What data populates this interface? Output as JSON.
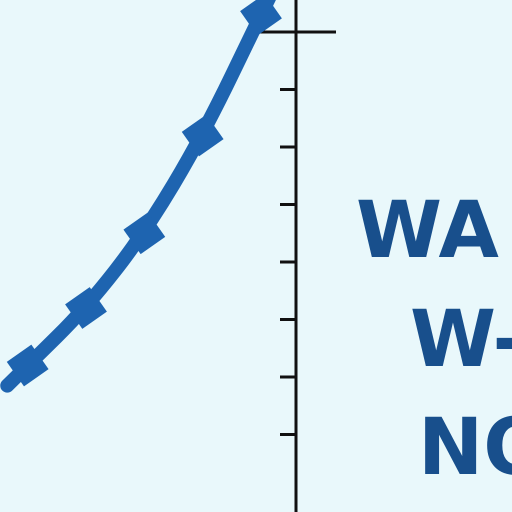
{
  "chart_data": {
    "type": "line",
    "x": [
      1,
      2,
      3,
      4,
      5
    ],
    "series": [
      {
        "values": [
          2.2,
          3.2,
          4.5,
          6.2,
          8.3
        ],
        "color": "#1e64b0",
        "marker": "square"
      }
    ],
    "ylim": [
      0,
      9
    ],
    "xlim": [
      0.8,
      5.6
    ],
    "y_ticks": [
      1,
      2,
      3,
      4,
      5,
      6,
      7,
      8
    ],
    "grid": false,
    "title": "",
    "xlabel": "",
    "ylabel": ""
  },
  "side_text": {
    "lines": [
      "WA",
      "W-",
      "NO"
    ],
    "color": "#184f8c"
  },
  "colors": {
    "background": "#e9f8fb",
    "axis": "#111111",
    "line": "#1e64b0"
  }
}
